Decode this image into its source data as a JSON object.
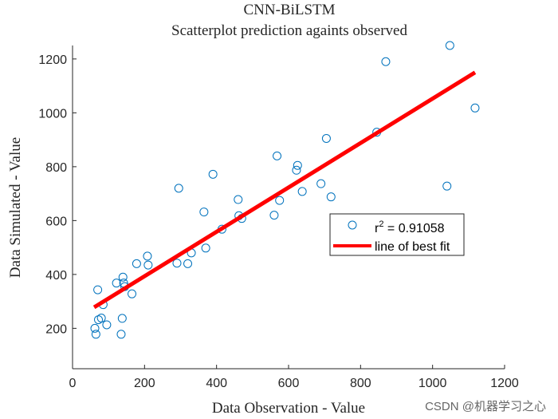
{
  "chart_data": {
    "type": "scatter",
    "title": "CNN-BiLSTM",
    "subtitle": "Scatterplot prediction againts observed",
    "xlabel": "Data Observation - Value",
    "ylabel": "Data Simulated - Value",
    "xlim": [
      0,
      1200
    ],
    "ylim": [
      50,
      1250
    ],
    "xticks": [
      0,
      200,
      400,
      600,
      800,
      1000,
      1200
    ],
    "yticks": [
      200,
      400,
      600,
      800,
      1000,
      1200
    ],
    "grid": false,
    "series": [
      {
        "name": "r² = 0.91058",
        "kind": "scatter",
        "marker": "circle",
        "color": "#0072BD",
        "points": [
          [
            62,
            200
          ],
          [
            65,
            178
          ],
          [
            70,
            343
          ],
          [
            72,
            232
          ],
          [
            80,
            238
          ],
          [
            85,
            288
          ],
          [
            95,
            213
          ],
          [
            122,
            368
          ],
          [
            135,
            178
          ],
          [
            138,
            237
          ],
          [
            140,
            390
          ],
          [
            142,
            368
          ],
          [
            145,
            355
          ],
          [
            165,
            328
          ],
          [
            178,
            440
          ],
          [
            208,
            468
          ],
          [
            210,
            435
          ],
          [
            290,
            442
          ],
          [
            295,
            720
          ],
          [
            320,
            440
          ],
          [
            330,
            480
          ],
          [
            365,
            632
          ],
          [
            370,
            498
          ],
          [
            390,
            772
          ],
          [
            415,
            568
          ],
          [
            460,
            678
          ],
          [
            462,
            618
          ],
          [
            470,
            608
          ],
          [
            560,
            620
          ],
          [
            568,
            840
          ],
          [
            575,
            675
          ],
          [
            622,
            787
          ],
          [
            625,
            805
          ],
          [
            638,
            708
          ],
          [
            690,
            737
          ],
          [
            705,
            905
          ],
          [
            718,
            688
          ],
          [
            845,
            928
          ],
          [
            870,
            1190
          ],
          [
            1040,
            728
          ],
          [
            1048,
            1250
          ],
          [
            1118,
            1018
          ]
        ]
      },
      {
        "name": "line of best fit",
        "kind": "line",
        "color": "#ff0000",
        "points": [
          [
            60,
            278
          ],
          [
            1118,
            1150
          ]
        ]
      }
    ],
    "legend": {
      "placement": "inside-right",
      "entries": [
        {
          "label": "r",
          "superscript": "2",
          "rest": " = 0.91058"
        },
        {
          "label": "line of best fit"
        }
      ]
    }
  },
  "watermark": "CSDN @机器学习之心"
}
